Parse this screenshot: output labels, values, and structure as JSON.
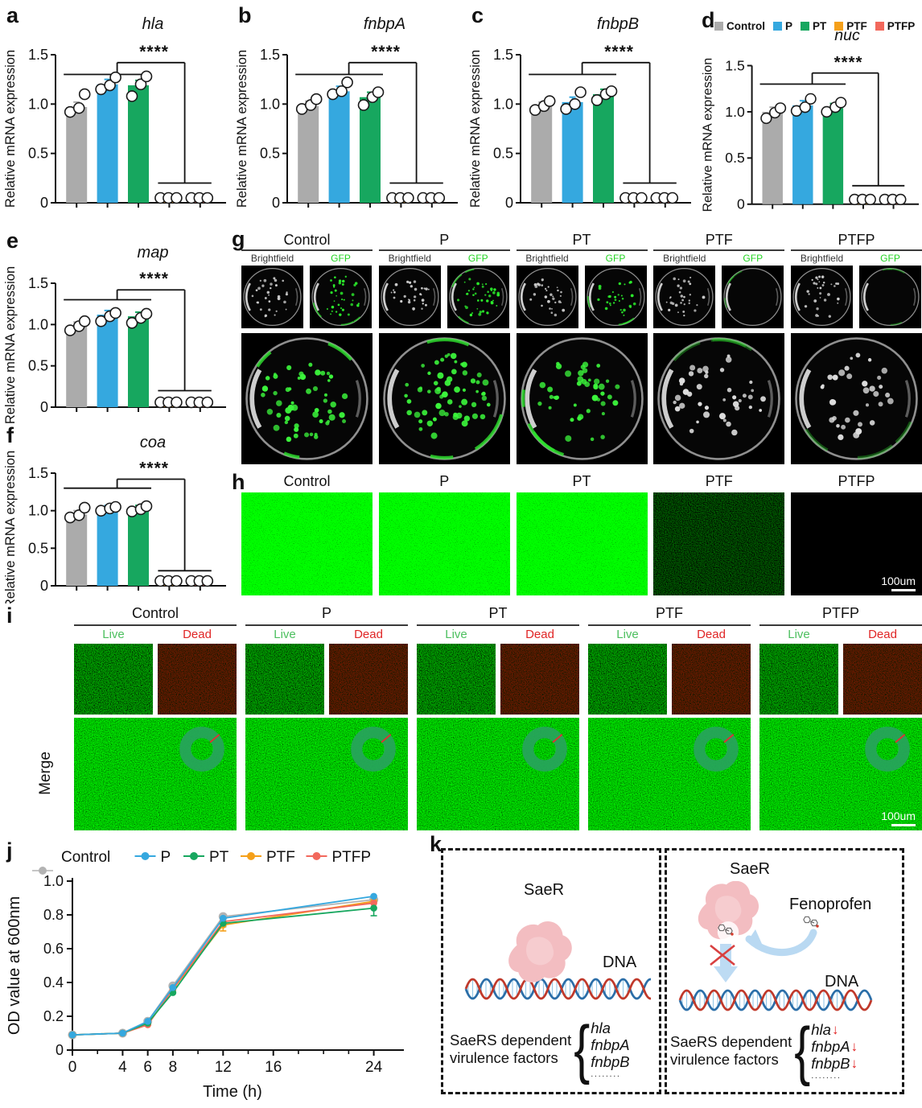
{
  "figure": {
    "panel_letters": {
      "a": "a",
      "b": "b",
      "c": "c",
      "d": "d",
      "e": "e",
      "f": "f",
      "g": "g",
      "h": "h",
      "i": "i",
      "j": "j",
      "k": "k"
    },
    "legend": {
      "items": [
        {
          "label": "Control",
          "color": "#ababab"
        },
        {
          "label": "P",
          "color": "#35a8df"
        },
        {
          "label": "PT",
          "color": "#17a75f"
        },
        {
          "label": "PTF",
          "color": "#f5a01a"
        },
        {
          "label": "PTFP",
          "color": "#f2685c"
        }
      ]
    },
    "g": {
      "groups": [
        "Control",
        "P",
        "PT",
        "PTF",
        "PTFP"
      ],
      "sub_labels": [
        "Brightfield",
        "GFP"
      ],
      "gfp_label_color": "#22d422",
      "brightfield_label_color": "#333333"
    },
    "h": {
      "groups": [
        "Control",
        "P",
        "PT",
        "PTF",
        "PTFP"
      ],
      "scale_bar": "100um"
    },
    "i": {
      "groups": [
        "Control",
        "P",
        "PT",
        "PTF",
        "PTFP"
      ],
      "live_label": "Live",
      "dead_label": "Dead",
      "merge_label": "Merge",
      "scale_bar": "100um",
      "live_color": "#4cbf5e",
      "dead_color": "#e02525"
    },
    "k": {
      "left": {
        "protein_label": "SaeR",
        "dna_label": "DNA",
        "caption_line1": "SaeRS dependent",
        "caption_line2": "virulence factors",
        "genes": [
          "hla",
          "fnbpA",
          "fnbpB"
        ],
        "ellipsis": "........"
      },
      "right": {
        "protein_label": "SaeR",
        "drug_label": "Fenoprofen",
        "dna_label": "DNA",
        "caption_line1": "SaeRS dependent",
        "caption_line2": "virulence factors",
        "genes": [
          "hla",
          "fnbpA",
          "fnbpB"
        ],
        "ellipsis": "........",
        "down_arrow": "↓"
      }
    }
  },
  "chart_data": [
    {
      "id": "a",
      "type": "bar",
      "title": "hla",
      "significance": "****",
      "ylabel": "Relative mRNA expression",
      "categories": [
        "Control",
        "P",
        "PT",
        "PTF",
        "PTFP"
      ],
      "colors": [
        "#ababab",
        "#35a8df",
        "#17a75f",
        "#f5a01a",
        "#f2685c"
      ],
      "values": [
        0.97,
        1.2,
        1.19,
        0.03,
        0.03
      ],
      "points": [
        [
          0.92,
          0.96,
          1.1
        ],
        [
          1.15,
          1.19,
          1.27
        ],
        [
          1.08,
          1.2,
          1.28
        ],
        [
          0.02,
          0.03,
          0.04
        ],
        [
          0.02,
          0.03,
          0.03
        ]
      ],
      "ylim": [
        0,
        1.5
      ],
      "yticks": [
        0,
        0.5,
        1.0,
        1.5
      ]
    },
    {
      "id": "b",
      "type": "bar",
      "title": "fnbpA",
      "significance": "****",
      "ylabel": "Relative mRNA expression",
      "categories": [
        "Control",
        "P",
        "PT",
        "PTF",
        "PTFP"
      ],
      "colors": [
        "#ababab",
        "#35a8df",
        "#17a75f",
        "#f5a01a",
        "#f2685c"
      ],
      "values": [
        0.98,
        1.13,
        1.07,
        0.02,
        0.03
      ],
      "points": [
        [
          0.95,
          0.99,
          1.05
        ],
        [
          1.1,
          1.13,
          1.22
        ],
        [
          0.99,
          1.07,
          1.12
        ],
        [
          0.02,
          0.03,
          0.03
        ],
        [
          0.02,
          0.03,
          0.04
        ]
      ],
      "ylim": [
        0,
        1.5
      ],
      "yticks": [
        0,
        0.5,
        1.0,
        1.5
      ]
    },
    {
      "id": "c",
      "type": "bar",
      "title": "fnbpB",
      "significance": "****",
      "ylabel": "Relative mRNA expression",
      "categories": [
        "Control",
        "P",
        "PT",
        "PTF",
        "PTFP"
      ],
      "colors": [
        "#ababab",
        "#35a8df",
        "#17a75f",
        "#f5a01a",
        "#f2685c"
      ],
      "values": [
        0.97,
        1.02,
        1.1,
        0.03,
        0.05
      ],
      "points": [
        [
          0.94,
          0.98,
          1.03
        ],
        [
          0.95,
          1.0,
          1.12
        ],
        [
          1.04,
          1.1,
          1.13
        ],
        [
          0.02,
          0.04,
          0.05
        ],
        [
          0.03,
          0.05,
          0.06
        ]
      ],
      "ylim": [
        0,
        1.5
      ],
      "yticks": [
        0,
        0.5,
        1.0,
        1.5
      ]
    },
    {
      "id": "d",
      "type": "bar",
      "title": "nuc",
      "significance": "****",
      "ylabel": "Relative mRNA expression",
      "categories": [
        "Control",
        "P",
        "PT",
        "PTF",
        "PTFP"
      ],
      "colors": [
        "#ababab",
        "#35a8df",
        "#17a75f",
        "#f5a01a",
        "#f2685c"
      ],
      "values": [
        1.0,
        1.07,
        1.04,
        0.03,
        0.06
      ],
      "points": [
        [
          0.93,
          0.99,
          1.04
        ],
        [
          1.01,
          1.05,
          1.14
        ],
        [
          1.0,
          1.05,
          1.1
        ],
        [
          0.02,
          0.04,
          0.05
        ],
        [
          0.04,
          0.06,
          0.08
        ]
      ],
      "ylim": [
        0,
        1.5
      ],
      "yticks": [
        0,
        0.5,
        1.0,
        1.5
      ]
    },
    {
      "id": "e",
      "type": "bar",
      "title": "map",
      "significance": "****",
      "ylabel": "Relative mRNA expression",
      "categories": [
        "Control",
        "P",
        "PT",
        "PTF",
        "PTFP"
      ],
      "colors": [
        "#ababab",
        "#35a8df",
        "#17a75f",
        "#f5a01a",
        "#f2685c"
      ],
      "values": [
        0.98,
        1.12,
        1.1,
        0.04,
        0.07
      ],
      "points": [
        [
          0.93,
          0.98,
          1.04
        ],
        [
          1.04,
          1.1,
          1.14
        ],
        [
          1.02,
          1.08,
          1.13
        ],
        [
          0.03,
          0.04,
          0.05
        ],
        [
          0.03,
          0.07,
          0.1
        ]
      ],
      "ylim": [
        0,
        1.5
      ],
      "yticks": [
        0,
        0.5,
        1.0,
        1.5
      ]
    },
    {
      "id": "f",
      "type": "bar",
      "title": "coa",
      "significance": "****",
      "ylabel": "Relative mRNA expression",
      "categories": [
        "Control",
        "P",
        "PT",
        "PTF",
        "PTFP"
      ],
      "colors": [
        "#ababab",
        "#35a8df",
        "#17a75f",
        "#f5a01a",
        "#f2685c"
      ],
      "values": [
        0.95,
        1.02,
        1.02,
        0.05,
        0.08
      ],
      "points": [
        [
          0.91,
          0.94,
          1.04
        ],
        [
          1.0,
          1.03,
          1.05
        ],
        [
          0.99,
          1.02,
          1.06
        ],
        [
          0.03,
          0.05,
          0.07
        ],
        [
          0.04,
          0.08,
          0.11
        ]
      ],
      "ylim": [
        0,
        1.5
      ],
      "yticks": [
        0,
        0.5,
        1.0,
        1.5
      ]
    },
    {
      "id": "j",
      "type": "line",
      "xlabel": "Time (h)",
      "ylabel": "OD value at 600nm",
      "x": [
        0,
        4,
        6,
        8,
        12,
        24
      ],
      "series": [
        {
          "name": "Control",
          "color": "#b3b3b3",
          "values": [
            0.09,
            0.1,
            0.17,
            0.38,
            0.79,
            0.89
          ]
        },
        {
          "name": "P",
          "color": "#35a8df",
          "values": [
            0.09,
            0.1,
            0.17,
            0.37,
            0.78,
            0.91
          ]
        },
        {
          "name": "PT",
          "color": "#17a75f",
          "values": [
            0.09,
            0.1,
            0.16,
            0.34,
            0.75,
            0.84
          ]
        },
        {
          "name": "PTF",
          "color": "#f5a01a",
          "values": [
            0.09,
            0.1,
            0.15,
            0.36,
            0.74,
            0.88
          ]
        },
        {
          "name": "PTFP",
          "color": "#f2685c",
          "values": [
            0.09,
            0.1,
            0.15,
            0.36,
            0.76,
            0.87
          ]
        }
      ],
      "error_bars": [
        {
          "series": 2,
          "xi": 5,
          "minus": 0.045
        },
        {
          "series": 3,
          "xi": 4,
          "minus": 0.035
        },
        {
          "series": 2,
          "xi": 4,
          "minus": 0.02
        }
      ],
      "xticks_labeled": [
        0,
        4,
        6,
        8,
        12,
        16,
        24
      ],
      "xticks_minor": [
        2,
        10,
        14,
        18,
        20,
        22
      ],
      "ylim": [
        0,
        1.0
      ],
      "yticks": [
        0,
        0.2,
        0.4,
        0.6,
        0.8,
        1.0
      ],
      "legend_position": "top"
    }
  ]
}
